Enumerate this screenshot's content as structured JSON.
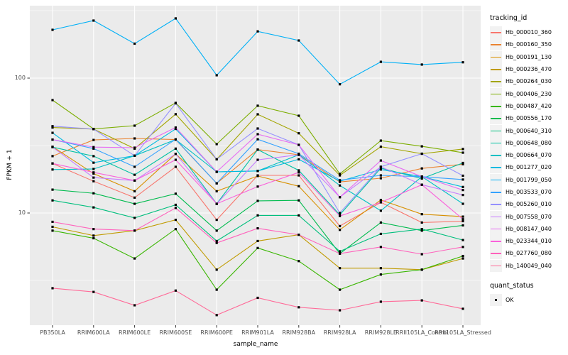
{
  "figure": {
    "panel_bg": "#EBEBEB",
    "grid_color": "#FFFFFF",
    "tick_text_color": "#4D4D4D",
    "point_color": "#000000"
  },
  "y_axis": {
    "label": "FPKM + 1",
    "ticks": [
      {
        "value": 100,
        "label": "100"
      },
      {
        "value": 10,
        "label": "10"
      }
    ]
  },
  "x_axis": {
    "label": "sample_name"
  },
  "legend": {
    "tracking_title": "tracking_id",
    "quant_title": "quant_status",
    "quant_items": [
      {
        "label": "OK"
      }
    ]
  },
  "chart_data": {
    "type": "line",
    "scale": "log10",
    "title": "",
    "xlabel": "sample_name",
    "ylabel": "FPKM + 1",
    "ylim": [
      1.45,
      345
    ],
    "grid": true,
    "legend_position": "right",
    "categories": [
      "PB350LA",
      "RRIM600LA",
      "RRIM600LE",
      "RRIM600SE",
      "RRIM600PE",
      "RRIM901LA",
      "RRIM928BA",
      "RRIM928LA",
      "RRIM928LE",
      "RRII105LA_Control",
      "RRII105LA_Stressed"
    ],
    "series": [
      {
        "name": "Hb_000010_360",
        "color": "#F8766D",
        "values": [
          23.3,
          17.2,
          13.0,
          22.0,
          8.9,
          19.0,
          19.0,
          8.0,
          12.0,
          8.5,
          8.7
        ]
      },
      {
        "name": "Hb_000160_350",
        "color": "#EA8331",
        "values": [
          26.4,
          34.8,
          35.7,
          35.0,
          16.6,
          29.5,
          27.0,
          17.0,
          18.1,
          21.4,
          23.0
        ]
      },
      {
        "name": "Hb_000191_130",
        "color": "#D89000",
        "values": [
          31.0,
          19.6,
          14.5,
          27.4,
          14.5,
          18.8,
          15.8,
          7.5,
          12.5,
          9.8,
          9.4
        ]
      },
      {
        "name": "Hb_000236_470",
        "color": "#C09B00",
        "values": [
          7.9,
          6.8,
          7.4,
          8.9,
          3.8,
          6.2,
          6.9,
          3.9,
          3.9,
          3.8,
          4.6
        ]
      },
      {
        "name": "Hb_000264_030",
        "color": "#A3A500",
        "values": [
          43.0,
          41.9,
          30.0,
          54.0,
          25.0,
          53.9,
          39.0,
          19.0,
          31.0,
          27.5,
          29.8
        ]
      },
      {
        "name": "Hb_000406_230",
        "color": "#7CAE00",
        "values": [
          68.7,
          42.0,
          44.4,
          65.5,
          32.4,
          62.4,
          52.6,
          19.5,
          34.4,
          31.2,
          28.0
        ]
      },
      {
        "name": "Hb_000487_420",
        "color": "#39B600",
        "values": [
          7.4,
          6.5,
          4.6,
          7.6,
          2.7,
          5.5,
          4.4,
          2.7,
          3.5,
          3.8,
          4.8
        ]
      },
      {
        "name": "Hb_000556_170",
        "color": "#00BB4E",
        "values": [
          14.9,
          14.0,
          11.7,
          13.9,
          7.4,
          12.3,
          12.4,
          5.0,
          8.5,
          7.4,
          8.1
        ]
      },
      {
        "name": "Hb_000640_310",
        "color": "#00BF7D",
        "values": [
          12.4,
          11.0,
          9.2,
          11.5,
          6.2,
          9.6,
          9.6,
          5.2,
          7.0,
          7.6,
          6.3
        ]
      },
      {
        "name": "Hb_000648_080",
        "color": "#00C1A3",
        "values": [
          30.8,
          26.4,
          19.2,
          30.0,
          11.7,
          29.5,
          20.7,
          9.7,
          21.5,
          18.0,
          23.5
        ]
      },
      {
        "name": "Hb_000664_070",
        "color": "#00BFC4",
        "values": [
          21.0,
          21.2,
          26.6,
          35.0,
          20.2,
          20.5,
          27.0,
          16.0,
          10.4,
          18.6,
          11.7
        ]
      },
      {
        "name": "Hb_001277_020",
        "color": "#00BAE0",
        "values": [
          39.3,
          23.6,
          26.6,
          42.0,
          20.2,
          20.5,
          25.0,
          17.2,
          21.0,
          18.6,
          15.6
        ]
      },
      {
        "name": "Hb_001799_050",
        "color": "#00B0F6",
        "values": [
          228,
          267,
          180,
          277,
          105,
          222,
          190,
          90,
          132,
          126,
          131
        ]
      },
      {
        "name": "Hb_003533_070",
        "color": "#35A2FF",
        "values": [
          35.0,
          30.0,
          22.0,
          35.2,
          16.6,
          35.2,
          27.5,
          17.5,
          19.0,
          18.6,
          17.7
        ]
      },
      {
        "name": "Hb_005260_010",
        "color": "#9590FF",
        "values": [
          44.0,
          41.9,
          26.6,
          65.0,
          25.0,
          42.3,
          32.0,
          10.0,
          22.0,
          27.5,
          18.9
        ]
      },
      {
        "name": "Hb_007558_070",
        "color": "#C77CFF",
        "values": [
          30.8,
          18.3,
          17.4,
          27.4,
          11.7,
          24.8,
          27.0,
          13.1,
          22.0,
          16.2,
          13.6
        ]
      },
      {
        "name": "Hb_008147_040",
        "color": "#E76BF3",
        "values": [
          35.0,
          30.8,
          30.5,
          43.0,
          20.2,
          38.4,
          32.0,
          13.1,
          24.5,
          18.6,
          14.8
        ]
      },
      {
        "name": "Hb_023344_010",
        "color": "#FA62DB",
        "values": [
          23.3,
          20.0,
          17.4,
          24.8,
          11.7,
          15.7,
          20.0,
          9.5,
          12.0,
          16.2,
          9.0
        ]
      },
      {
        "name": "Hb_027760_080",
        "color": "#FF62BC",
        "values": [
          8.6,
          7.6,
          7.4,
          10.9,
          6.0,
          7.7,
          6.9,
          5.0,
          5.6,
          4.95,
          5.6
        ]
      },
      {
        "name": "Hb_140049_040",
        "color": "#FF6A98",
        "values": [
          2.77,
          2.6,
          2.07,
          2.66,
          1.75,
          2.35,
          2.0,
          1.9,
          2.2,
          2.25,
          1.95
        ]
      }
    ]
  }
}
